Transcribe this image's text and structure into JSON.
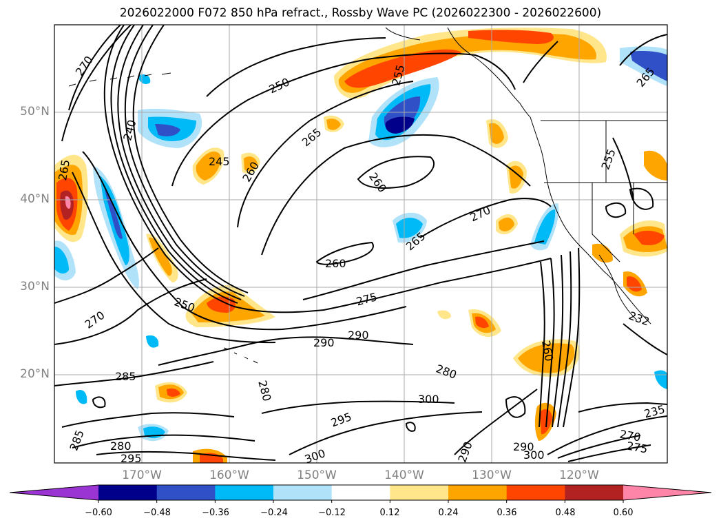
{
  "title": "2026022000 F072 850 hPa refract., Rossby Wave PC (2026022300 - 2026022600)",
  "lat_labels": [
    "50°N",
    "40°N",
    "30°N",
    "20°N"
  ],
  "lon_labels": [
    "170°W",
    "160°W",
    "150°W",
    "140°W",
    "130°W",
    "120°W"
  ],
  "colorbar": {
    "ticks": [
      "−0.60",
      "−0.48",
      "−0.36",
      "−0.24",
      "−0.12",
      "0.12",
      "0.24",
      "0.36",
      "0.48",
      "0.60"
    ],
    "colors": [
      "#9a35d4",
      "#00008b",
      "#3050c8",
      "#00baf8",
      "#b0e2fa",
      "#ffffff",
      "#ffe68a",
      "#ffa500",
      "#ff4500",
      "#b22222",
      "#ff85a8",
      "#ff85a8"
    ]
  },
  "contour_labels": [
    "270",
    "250",
    "255",
    "240",
    "265",
    "245",
    "260",
    "260",
    "270",
    "265",
    "260",
    "265",
    "275",
    "250",
    "270",
    "290",
    "290",
    "280",
    "285",
    "280",
    "300",
    "295",
    "285",
    "280",
    "295",
    "300",
    "290",
    "290",
    "300",
    "260",
    "235",
    "270",
    "275",
    "255",
    "265",
    "232"
  ]
}
